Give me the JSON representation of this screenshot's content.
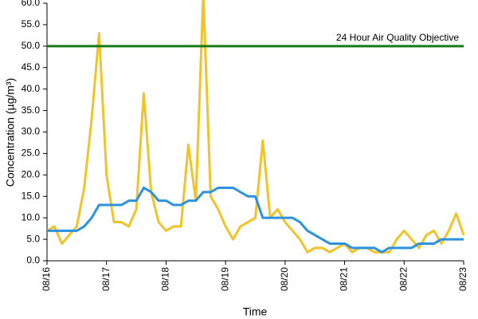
{
  "chart_data": {
    "type": "line",
    "y_label": "Concentration (µg/m³)",
    "x_label": "Time",
    "categories": [
      "08/16",
      null,
      null,
      null,
      null,
      null,
      null,
      null,
      "08/17",
      null,
      null,
      null,
      null,
      null,
      null,
      null,
      "08/18",
      null,
      null,
      null,
      null,
      null,
      null,
      null,
      "08/19",
      null,
      null,
      null,
      null,
      null,
      null,
      null,
      "08/20",
      null,
      null,
      null,
      null,
      null,
      null,
      null,
      "08/21",
      null,
      null,
      null,
      null,
      null,
      null,
      null,
      "08/22",
      null,
      null,
      null,
      null,
      null,
      null,
      null,
      "08/23"
    ],
    "series": [
      {
        "color": "#f2c327",
        "values": [
          7,
          8,
          4,
          6,
          8,
          17,
          33,
          53,
          20,
          9,
          9,
          8,
          12,
          39,
          16,
          9,
          7,
          8,
          8,
          27,
          14,
          62,
          15,
          12,
          8,
          5,
          8,
          9,
          10,
          28,
          10,
          12,
          9,
          7,
          5,
          2,
          3,
          3,
          2,
          3,
          4,
          2,
          3,
          3,
          2,
          2,
          2,
          5,
          7,
          5,
          3,
          6,
          7,
          4,
          7,
          11,
          6
        ]
      },
      {
        "color": "#2b91e0",
        "values": [
          7,
          7,
          7,
          7,
          7,
          8,
          10,
          13,
          13,
          13,
          13,
          14,
          14,
          17,
          16,
          14,
          14,
          13,
          13,
          14,
          14,
          16,
          16,
          17,
          17,
          17,
          16,
          15,
          15,
          10,
          10,
          10,
          10,
          10,
          9,
          7,
          6,
          5,
          4,
          4,
          4,
          3,
          3,
          3,
          3,
          2,
          3,
          3,
          3,
          3,
          4,
          4,
          4,
          5,
          5,
          5,
          5
        ]
      }
    ],
    "annotation": {
      "text": "24 Hour Air Quality Objective",
      "value": 50,
      "color": "#177a17"
    },
    "ylim": [
      0,
      60
    ],
    "yticks": [
      {
        "value": 0,
        "label": "0.0"
      },
      {
        "value": 5,
        "label": "5.0"
      },
      {
        "value": 10,
        "label": "10.0"
      },
      {
        "value": 15,
        "label": "15.0"
      },
      {
        "value": 20,
        "label": "20.0"
      },
      {
        "value": 25,
        "label": "25.0"
      },
      {
        "value": 30,
        "label": "30.0"
      },
      {
        "value": 35,
        "label": "35.0"
      },
      {
        "value": 40,
        "label": "40.0"
      },
      {
        "value": 45,
        "label": "45.0"
      },
      {
        "value": 50,
        "label": "50.0"
      },
      {
        "value": 55,
        "label": "55.0"
      },
      {
        "value": 60,
        "label": "60.0"
      }
    ]
  }
}
